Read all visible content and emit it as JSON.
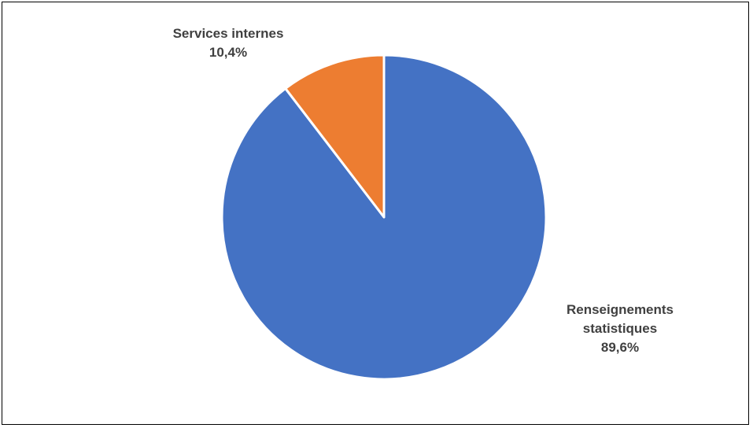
{
  "chart_data": {
    "type": "pie",
    "title": "",
    "start_angle_deg": 0,
    "direction": "clockwise",
    "slices": [
      {
        "label": "Renseignements statistiques",
        "label_lines": [
          "Renseignements",
          "statistiques"
        ],
        "value": 89.6,
        "value_label": "89,6%",
        "color": "#4472C4"
      },
      {
        "label": "Services internes",
        "label_lines": [
          "Services internes"
        ],
        "value": 10.4,
        "value_label": "10,4%",
        "color": "#ED7D31"
      }
    ],
    "slice_border_color": "#FFFFFF",
    "legend": "none"
  }
}
